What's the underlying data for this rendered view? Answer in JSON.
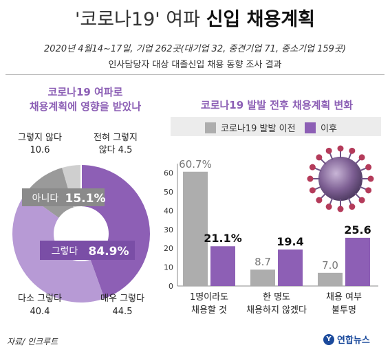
{
  "header": {
    "title_main": "'코로나19' 여파",
    "title_highlight": "신입 채용계획",
    "subtitle1": "2020년 4월14~17일, 기업 262곳(대기업 32, 중견기업 71, 중소기업 159곳)",
    "subtitle2": "인사담당자 대상 대졸신입 채용 동향 조사 결과"
  },
  "left_question": [
    "코로나19 여파로",
    "채용계획에 영향을 받았나"
  ],
  "right_question": "코로나19 발발 전후 채용계획 변화",
  "legend": {
    "before": "코로나19 발발 이전",
    "after": "이후"
  },
  "colors": {
    "before": "#adadad",
    "after": "#8d5fb5",
    "purple_light": "#b79ad5",
    "gray_light": "#cfcfcf",
    "purple_text": "#8c5fb5"
  },
  "source": "자료/ 인크루트",
  "logo": "연합뉴스",
  "chart_data": [
    {
      "type": "pie",
      "donut": true,
      "slices": [
        {
          "label": "매우 그렇다",
          "value": 44.5
        },
        {
          "label": "다소 그렇다",
          "value": 40.4
        },
        {
          "label": "그렇지 않다",
          "value": 10.6
        },
        {
          "label": "전혀 그렇지 않다",
          "value": 4.5
        }
      ],
      "groups": [
        {
          "label": "그렇다",
          "value": "84.9%"
        },
        {
          "label": "아니다",
          "value": "15.1%"
        }
      ]
    },
    {
      "type": "bar",
      "categories": [
        [
          "1명이라도",
          "채용할 것"
        ],
        [
          "한 명도",
          "채용하지 않겠다"
        ],
        [
          "채용 여부",
          "불투명"
        ]
      ],
      "series": [
        {
          "name": "코로나19 발발 이전",
          "values": [
            60.7,
            8.7,
            7.0
          ],
          "labels": [
            "60.7%",
            "8.7",
            "7.0"
          ]
        },
        {
          "name": "이후",
          "values": [
            21.1,
            19.4,
            25.6
          ],
          "labels": [
            "21.1%",
            "19.4",
            "25.6"
          ]
        }
      ],
      "yticks": [
        0,
        10,
        20,
        30,
        40,
        50,
        60
      ],
      "ylim": [
        0,
        65
      ],
      "grid": false
    }
  ]
}
